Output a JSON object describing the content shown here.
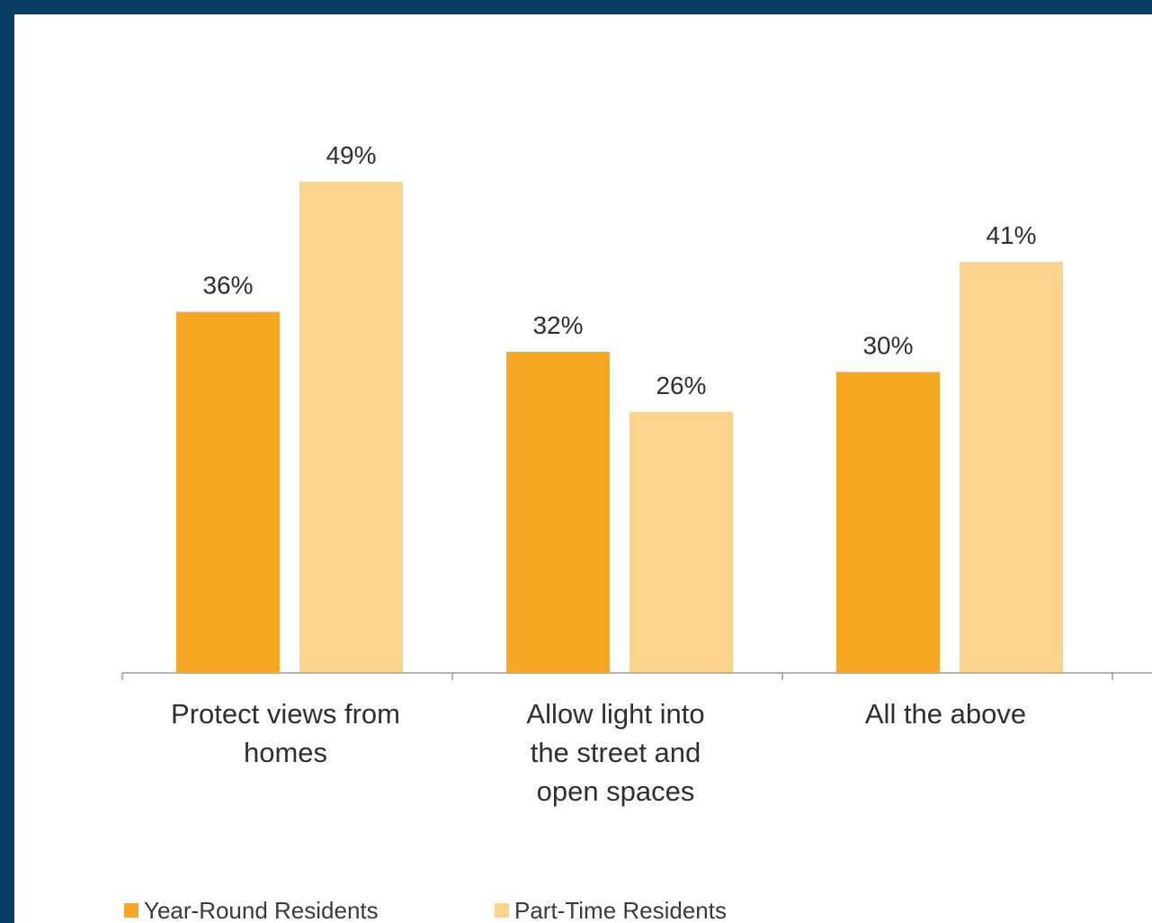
{
  "chart_data": {
    "type": "bar",
    "categories": [
      [
        "Protect views from",
        "homes"
      ],
      [
        "Allow light into",
        "the street and",
        "open spaces"
      ],
      [
        "All the above"
      ]
    ],
    "series": [
      {
        "name": "Year-Round Residents",
        "values": [
          36,
          32,
          30
        ],
        "labels": [
          "36%",
          "32%",
          "30%"
        ],
        "color": "#f5a623"
      },
      {
        "name": "Part-Time Residents",
        "values": [
          49,
          26,
          41
        ],
        "labels": [
          "49%",
          "26%",
          "41%"
        ],
        "color": "#fcd38b"
      }
    ],
    "ylim": [
      0,
      55
    ],
    "grid": false,
    "legend_position": "bottom-left"
  }
}
